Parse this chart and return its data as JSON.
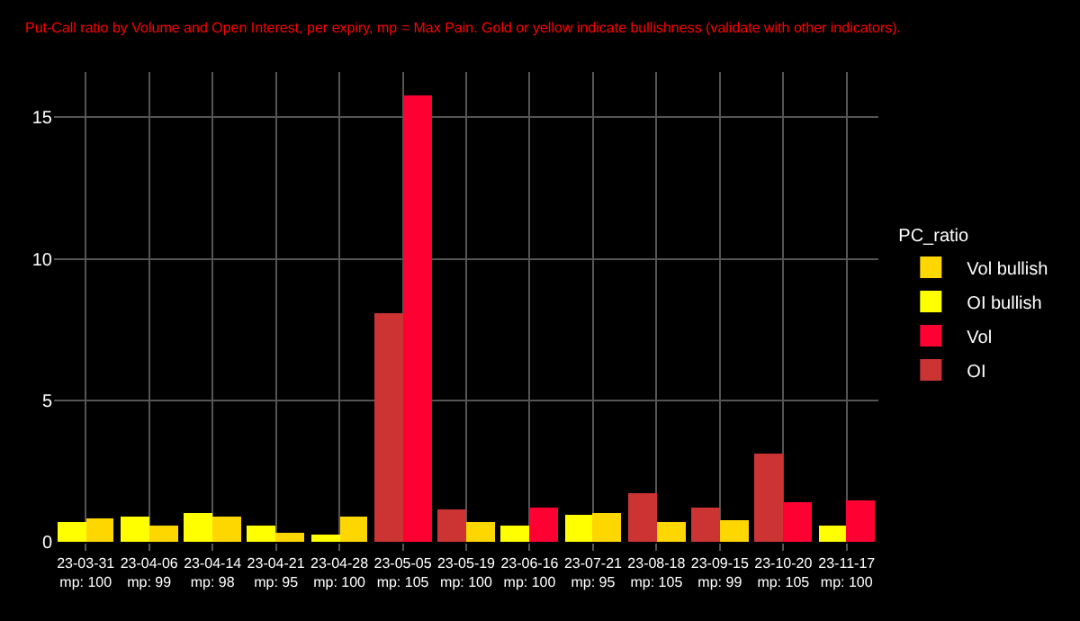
{
  "chart_data": {
    "type": "bar",
    "subtitle": "Put-Call ratio by Volume and Open Interest, per expiry, mp = Max Pain. Gold or yellow indicate bullishness (validate with other indicators).",
    "legend_title": "PC_ratio",
    "categories": [
      "23-03-31\nmp: 100",
      "23-04-06\nmp: 99",
      "23-04-14\nmp: 98",
      "23-04-21\nmp: 95",
      "23-04-28\nmp: 100",
      "23-05-05\nmp: 105",
      "23-05-19\nmp: 100",
      "23-06-16\nmp: 100",
      "23-07-21\nmp: 95",
      "23-08-18\nmp: 105",
      "23-09-15\nmp: 99",
      "23-10-20\nmp: 105",
      "23-11-17\nmp: 100"
    ],
    "series": [
      {
        "name": "Vol bullish",
        "color": "#ffd700",
        "values": [
          0.8,
          0.6,
          0.87,
          0.35,
          0.87,
          null,
          0.67,
          null,
          1.0,
          0.67,
          0.74,
          null,
          null
        ]
      },
      {
        "name": "OI bullish",
        "color": "#ffff00",
        "values": [
          0.67,
          0.87,
          1.0,
          0.6,
          0.28,
          null,
          null,
          0.6,
          0.93,
          null,
          null,
          null,
          0.6
        ]
      },
      {
        "name": "Vol",
        "color": "#ff0033",
        "values": [
          null,
          null,
          null,
          null,
          null,
          15.8,
          null,
          1.19,
          null,
          null,
          null,
          1.39,
          1.45
        ]
      },
      {
        "name": "OI",
        "color": "#cc3333",
        "values": [
          null,
          null,
          null,
          null,
          null,
          8.05,
          1.13,
          null,
          null,
          1.72,
          1.19,
          3.09,
          null
        ]
      }
    ],
    "ylim": [
      0,
      16.6
    ],
    "yticks": [
      0,
      5,
      10,
      15
    ],
    "grid": true,
    "legend": "right"
  }
}
